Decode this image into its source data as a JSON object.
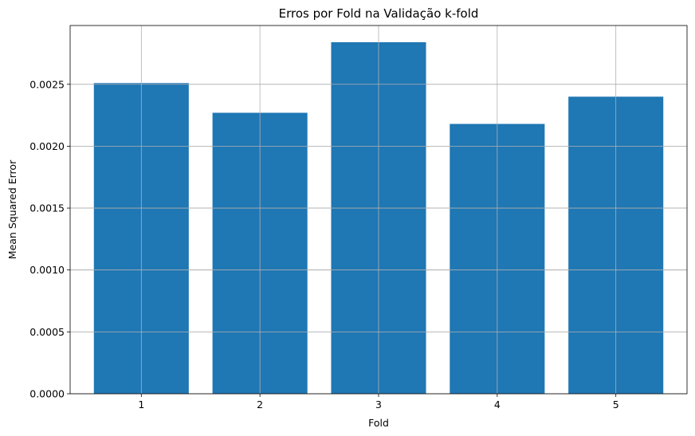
{
  "chart_data": {
    "type": "bar",
    "title": "Erros por Fold na Validação k-fold",
    "xlabel": "Fold",
    "ylabel": "Mean Squared Error",
    "categories": [
      "1",
      "2",
      "3",
      "4",
      "5"
    ],
    "values": [
      0.00251,
      0.00227,
      0.00284,
      0.00218,
      0.0024
    ],
    "ylim": [
      0,
      0.002975
    ],
    "yticks": [
      0,
      0.0005,
      0.001,
      0.0015,
      0.002,
      0.0025
    ],
    "ytick_labels": [
      "0.0000",
      "0.0005",
      "0.0010",
      "0.0015",
      "0.0020",
      "0.0025"
    ],
    "grid": true,
    "legend": "none",
    "colors": {
      "bar": "#1f77b4",
      "grid": "#b0b0b0",
      "axis": "#000000"
    }
  }
}
